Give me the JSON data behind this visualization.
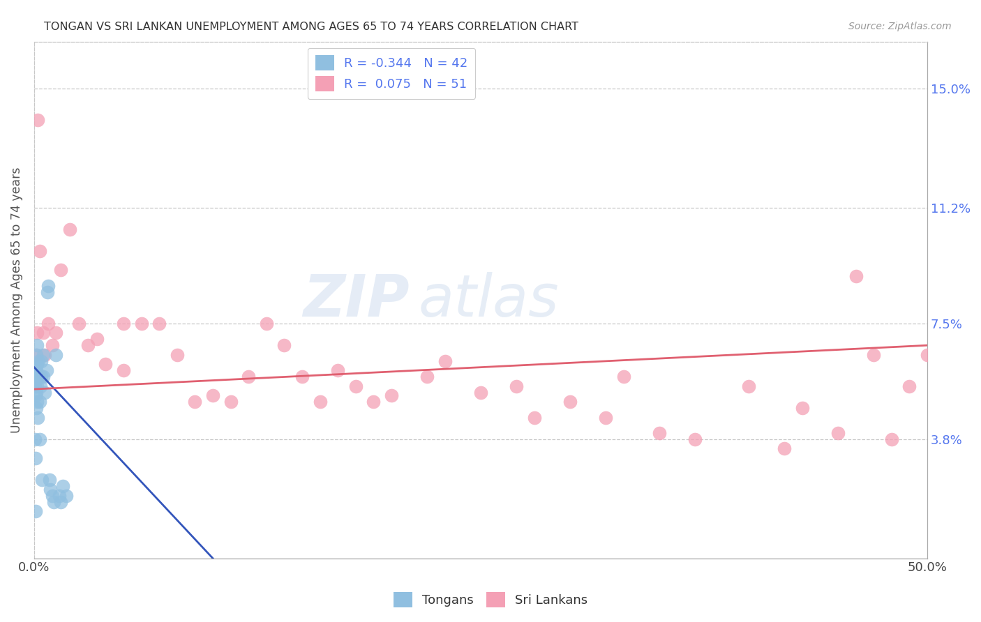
{
  "title": "TONGAN VS SRI LANKAN UNEMPLOYMENT AMONG AGES 65 TO 74 YEARS CORRELATION CHART",
  "source": "Source: ZipAtlas.com",
  "ylabel": "Unemployment Among Ages 65 to 74 years",
  "xlim": [
    0,
    50
  ],
  "ylim": [
    0,
    16.5
  ],
  "yticks": [
    0,
    3.8,
    7.5,
    11.2,
    15.0
  ],
  "ytick_labels": [
    "",
    "3.8%",
    "7.5%",
    "11.2%",
    "15.0%"
  ],
  "tongan_color": "#90bfe0",
  "srilanka_color": "#f4a0b5",
  "tongan_line_color": "#3355bb",
  "srilanka_line_color": "#e06070",
  "watermark_zip": "ZIP",
  "watermark_atlas": "atlas",
  "background_color": "#ffffff",
  "grid_color": "#c8c8c8",
  "title_color": "#333333",
  "right_tick_color": "#5577ee",
  "legend_blue_label": "R = -0.344   N = 42",
  "legend_pink_label": "R =  0.075   N = 51",
  "bottom_label_blue": "Tongans",
  "bottom_label_pink": "Sri Lankans",
  "tongan_x": [
    0.05,
    0.05,
    0.05,
    0.07,
    0.07,
    0.08,
    0.08,
    0.1,
    0.1,
    0.1,
    0.1,
    0.12,
    0.12,
    0.12,
    0.15,
    0.15,
    0.17,
    0.17,
    0.2,
    0.2,
    0.25,
    0.3,
    0.3,
    0.35,
    0.4,
    0.4,
    0.45,
    0.5,
    0.5,
    0.6,
    0.7,
    0.75,
    0.8,
    0.85,
    0.9,
    1.0,
    1.1,
    1.2,
    1.4,
    1.5,
    1.6,
    1.8
  ],
  "tongan_y": [
    5.8,
    5.5,
    3.8,
    6.0,
    5.2,
    3.2,
    1.5,
    6.2,
    5.8,
    5.3,
    4.8,
    6.5,
    6.0,
    5.7,
    6.8,
    5.5,
    6.2,
    5.0,
    5.8,
    4.5,
    6.3,
    5.0,
    3.8,
    5.5,
    6.3,
    5.8,
    2.5,
    6.5,
    5.8,
    5.3,
    6.0,
    8.5,
    8.7,
    2.5,
    2.2,
    2.0,
    1.8,
    6.5,
    2.0,
    1.8,
    2.3,
    2.0
  ],
  "srilanka_x": [
    0.1,
    0.15,
    0.2,
    0.3,
    0.5,
    0.6,
    0.8,
    1.0,
    1.2,
    1.5,
    2.0,
    2.5,
    3.0,
    3.5,
    4.0,
    5.0,
    5.0,
    6.0,
    7.0,
    8.0,
    9.0,
    10.0,
    11.0,
    12.0,
    13.0,
    14.0,
    15.0,
    16.0,
    17.0,
    18.0,
    19.0,
    20.0,
    22.0,
    23.0,
    25.0,
    27.0,
    28.0,
    30.0,
    32.0,
    33.0,
    35.0,
    37.0,
    40.0,
    42.0,
    43.0,
    45.0,
    46.0,
    47.0,
    48.0,
    49.0,
    50.0
  ],
  "srilanka_y": [
    6.5,
    7.2,
    14.0,
    9.8,
    7.2,
    6.5,
    7.5,
    6.8,
    7.2,
    9.2,
    10.5,
    7.5,
    6.8,
    7.0,
    6.2,
    7.5,
    6.0,
    7.5,
    7.5,
    6.5,
    5.0,
    5.2,
    5.0,
    5.8,
    7.5,
    6.8,
    5.8,
    5.0,
    6.0,
    5.5,
    5.0,
    5.2,
    5.8,
    6.3,
    5.3,
    5.5,
    4.5,
    5.0,
    4.5,
    5.8,
    4.0,
    3.8,
    5.5,
    3.5,
    4.8,
    4.0,
    9.0,
    6.5,
    3.8,
    5.5,
    6.5
  ],
  "tongan_trend_x": [
    0,
    10.0
  ],
  "tongan_trend_y": [
    6.1,
    0.0
  ],
  "srilanka_trend_x": [
    0,
    50.0
  ],
  "srilanka_trend_y": [
    5.4,
    6.8
  ]
}
